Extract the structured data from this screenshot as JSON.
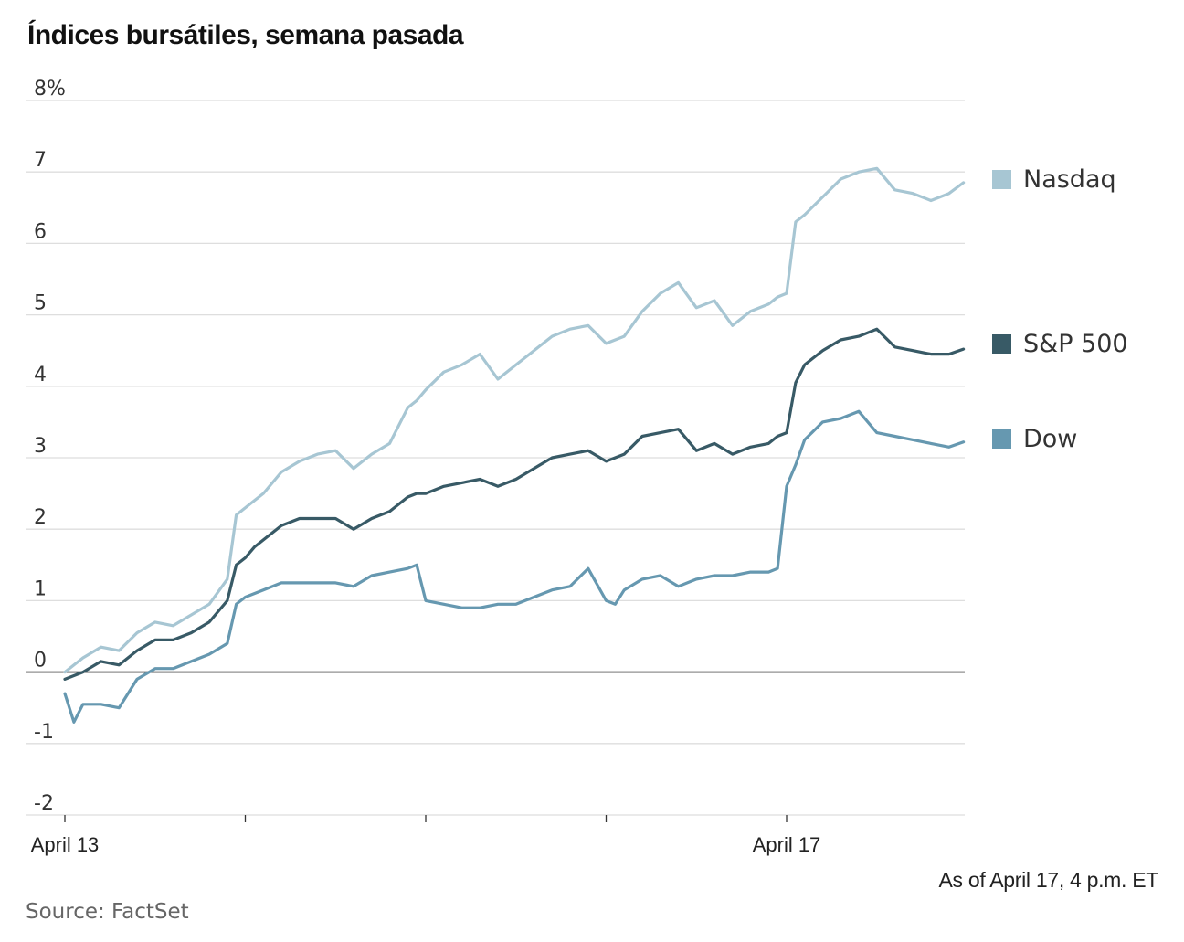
{
  "title": "Índices bursátiles, semana pasada",
  "note": "As of April 17, 4 p.m. ET",
  "source": "Source: FactSet",
  "chart_data": {
    "type": "line",
    "title": "Índices bursátiles, semana pasada",
    "xlabel": "",
    "ylabel": "",
    "x_labels": [
      "April 13",
      "April 17"
    ],
    "x_sessions": 5,
    "y_ticks": [
      "8%",
      "7",
      "6",
      "5",
      "4",
      "3",
      "2",
      "1",
      "0",
      "-1",
      "-2"
    ],
    "y_tick_values": [
      8,
      7,
      6,
      5,
      4,
      3,
      2,
      1,
      0,
      -1,
      -2
    ],
    "ylim": [
      -2,
      8
    ],
    "grid": true,
    "legend": "right",
    "series": [
      {
        "name": "Nasdaq",
        "color": "#a7c6d3",
        "x": [
          0,
          0.1,
          0.2,
          0.3,
          0.4,
          0.5,
          0.6,
          0.7,
          0.8,
          0.9,
          0.95,
          1.0,
          1.05,
          1.1,
          1.2,
          1.3,
          1.4,
          1.5,
          1.6,
          1.7,
          1.8,
          1.9,
          1.95,
          2.0,
          2.1,
          2.2,
          2.3,
          2.4,
          2.5,
          2.6,
          2.7,
          2.8,
          2.9,
          3.0,
          3.05,
          3.1,
          3.2,
          3.3,
          3.4,
          3.5,
          3.6,
          3.7,
          3.8,
          3.9,
          3.95,
          4.0,
          4.05,
          4.1,
          4.2,
          4.3,
          4.4,
          4.5,
          4.6,
          4.7,
          4.8,
          4.9,
          4.98
        ],
        "values": [
          0.0,
          0.2,
          0.35,
          0.3,
          0.55,
          0.7,
          0.65,
          0.8,
          0.95,
          1.3,
          2.2,
          2.3,
          2.4,
          2.5,
          2.8,
          2.95,
          3.05,
          3.1,
          2.85,
          3.05,
          3.2,
          3.7,
          3.8,
          3.95,
          4.2,
          4.3,
          4.45,
          4.1,
          4.3,
          4.5,
          4.7,
          4.8,
          4.85,
          4.6,
          4.65,
          4.7,
          5.05,
          5.3,
          5.45,
          5.1,
          5.2,
          4.85,
          5.05,
          5.15,
          5.25,
          5.3,
          6.3,
          6.4,
          6.65,
          6.9,
          7.0,
          7.05,
          6.75,
          6.7,
          6.6,
          6.7,
          6.85
        ]
      },
      {
        "name": "S&P 500",
        "color": "#385a66",
        "x": [
          0,
          0.1,
          0.2,
          0.3,
          0.4,
          0.5,
          0.6,
          0.7,
          0.8,
          0.9,
          0.95,
          1.0,
          1.05,
          1.1,
          1.2,
          1.3,
          1.4,
          1.5,
          1.6,
          1.7,
          1.8,
          1.9,
          1.95,
          2.0,
          2.1,
          2.2,
          2.3,
          2.4,
          2.5,
          2.6,
          2.7,
          2.8,
          2.9,
          3.0,
          3.05,
          3.1,
          3.2,
          3.3,
          3.4,
          3.5,
          3.6,
          3.7,
          3.8,
          3.9,
          3.95,
          4.0,
          4.05,
          4.1,
          4.2,
          4.3,
          4.4,
          4.5,
          4.6,
          4.7,
          4.8,
          4.9,
          4.98
        ],
        "values": [
          -0.1,
          0.0,
          0.15,
          0.1,
          0.3,
          0.45,
          0.45,
          0.55,
          0.7,
          1.0,
          1.5,
          1.6,
          1.75,
          1.85,
          2.05,
          2.15,
          2.15,
          2.15,
          2.0,
          2.15,
          2.25,
          2.45,
          2.5,
          2.5,
          2.6,
          2.65,
          2.7,
          2.6,
          2.7,
          2.85,
          3.0,
          3.05,
          3.1,
          2.95,
          3.0,
          3.05,
          3.3,
          3.35,
          3.4,
          3.1,
          3.2,
          3.05,
          3.15,
          3.2,
          3.3,
          3.35,
          4.05,
          4.3,
          4.5,
          4.65,
          4.7,
          4.8,
          4.55,
          4.5,
          4.45,
          4.45,
          4.52
        ]
      },
      {
        "name": "Dow",
        "color": "#6698b0",
        "x": [
          0,
          0.05,
          0.1,
          0.2,
          0.3,
          0.4,
          0.5,
          0.6,
          0.7,
          0.8,
          0.9,
          0.95,
          1.0,
          1.05,
          1.1,
          1.2,
          1.3,
          1.4,
          1.5,
          1.6,
          1.7,
          1.8,
          1.9,
          1.95,
          2.0,
          2.1,
          2.2,
          2.3,
          2.4,
          2.5,
          2.6,
          2.7,
          2.8,
          2.9,
          3.0,
          3.05,
          3.1,
          3.2,
          3.3,
          3.4,
          3.5,
          3.6,
          3.7,
          3.8,
          3.9,
          3.95,
          4.0,
          4.05,
          4.1,
          4.2,
          4.3,
          4.4,
          4.5,
          4.6,
          4.7,
          4.8,
          4.9,
          4.98
        ],
        "values": [
          -0.3,
          -0.7,
          -0.45,
          -0.45,
          -0.5,
          -0.1,
          0.05,
          0.05,
          0.15,
          0.25,
          0.4,
          0.95,
          1.05,
          1.1,
          1.15,
          1.25,
          1.25,
          1.25,
          1.25,
          1.2,
          1.35,
          1.4,
          1.45,
          1.5,
          1.0,
          0.95,
          0.9,
          0.9,
          0.95,
          0.95,
          1.05,
          1.15,
          1.2,
          1.45,
          1.0,
          0.95,
          1.15,
          1.3,
          1.35,
          1.2,
          1.3,
          1.35,
          1.35,
          1.4,
          1.4,
          1.45,
          2.6,
          2.9,
          3.25,
          3.5,
          3.55,
          3.65,
          3.35,
          3.3,
          3.25,
          3.2,
          3.15,
          3.22
        ]
      }
    ]
  }
}
